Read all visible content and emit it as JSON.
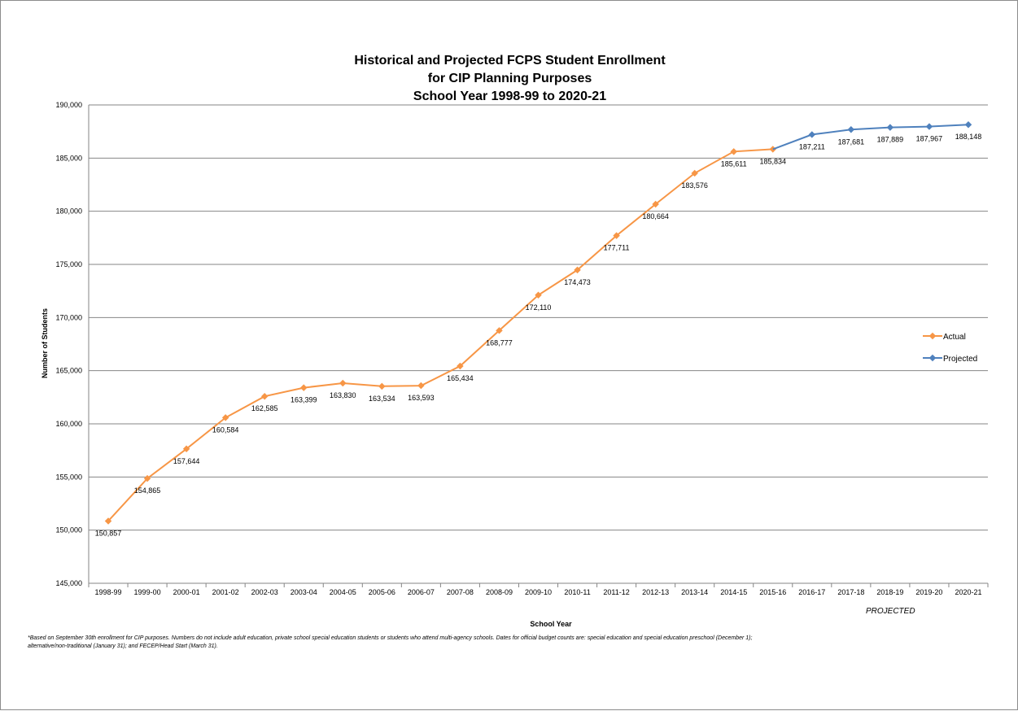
{
  "chart_data": {
    "type": "line",
    "title_lines": [
      "Historical and Projected FCPS Student Enrollment",
      "for CIP Planning Purposes",
      "School Year 1998-99 to 2020-21"
    ],
    "xlabel": "School Year",
    "ylabel": "Number of Students",
    "ylim": [
      145000,
      190000
    ],
    "yticks": [
      145000,
      150000,
      155000,
      160000,
      165000,
      170000,
      175000,
      180000,
      185000,
      190000
    ],
    "ytick_labels": [
      "145,000",
      "150,000",
      "155,000",
      "160,000",
      "165,000",
      "170,000",
      "175,000",
      "180,000",
      "185,000",
      "190,000"
    ],
    "grid": true,
    "legend_position": "right",
    "categories": [
      "1998-99",
      "1999-00",
      "2000-01",
      "2001-02",
      "2002-03",
      "2003-04",
      "2004-05",
      "2005-06",
      "2006-07",
      "2007-08",
      "2008-09",
      "2009-10",
      "2010-11",
      "2011-12",
      "2012-13",
      "2013-14",
      "2014-15",
      "2015-16",
      "2016-17",
      "2017-18",
      "2018-19",
      "2019-20",
      "2020-21"
    ],
    "series": [
      {
        "name": "Actual",
        "color": "#f79646",
        "values": [
          150857,
          154865,
          157644,
          160584,
          162585,
          163399,
          163830,
          163534,
          163593,
          165434,
          168777,
          172110,
          174473,
          177711,
          180664,
          183576,
          185611,
          185834,
          null,
          null,
          null,
          null,
          null
        ],
        "labels": [
          "150,857",
          "154,865",
          "157,644",
          "160,584",
          "162,585",
          "163,399",
          "163,830",
          "163,534",
          "163,593",
          "165,434",
          "168,777",
          "172,110",
          "174,473",
          "177,711",
          "180,664",
          "183,576",
          "185,611",
          "185,834",
          null,
          null,
          null,
          null,
          null
        ]
      },
      {
        "name": "Projected",
        "color": "#4f81bd",
        "values": [
          null,
          null,
          null,
          null,
          null,
          null,
          null,
          null,
          null,
          null,
          null,
          null,
          null,
          null,
          null,
          null,
          null,
          185834,
          187211,
          187681,
          187889,
          187967,
          188148
        ],
        "labels": [
          null,
          null,
          null,
          null,
          null,
          null,
          null,
          null,
          null,
          null,
          null,
          null,
          null,
          null,
          null,
          null,
          null,
          null,
          "187,211",
          "187,681",
          "187,889",
          "187,967",
          "188,148"
        ]
      }
    ],
    "annotations": {
      "projected_note": "PROJECTED",
      "footnote": "*Based on September 30th enrollment for CIP purposes. Numbers do not include adult education, private school special education students or students who attend multi-agency schools. Dates for official budget counts are: special education and special education preschool (December 1); alternative/non-traditional (January 31); and FECEP/Head Start (March 31)."
    },
    "axis_color": "#868686",
    "grid_color": "#868686"
  }
}
